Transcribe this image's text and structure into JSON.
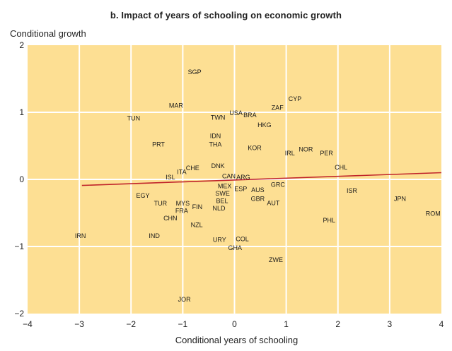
{
  "chart_data": {
    "type": "scatter",
    "title": "b. Impact of years of schooling on economic growth",
    "xlabel": "Conditional years of schooling",
    "ylabel": "Conditional growth",
    "xlim": [
      -4,
      4
    ],
    "ylim": [
      -2,
      2
    ],
    "xticks": [
      -4,
      -3,
      -2,
      -1,
      0,
      1,
      2,
      3,
      4
    ],
    "yticks": [
      -2,
      -1,
      0,
      1,
      2
    ],
    "xtick_labels": [
      "−4",
      "−3",
      "−2",
      "−1",
      "0",
      "1",
      "2",
      "3",
      "4"
    ],
    "ytick_labels": [
      "−2",
      "−1",
      "0",
      "1",
      "2"
    ],
    "grid": true,
    "colors": {
      "plot_background": "#fddf93",
      "grid": "#ffffff",
      "fit_line": "#c0242a"
    },
    "fit_line": {
      "x": [
        -2.95,
        4.0
      ],
      "y": [
        -0.09,
        0.1
      ]
    },
    "points": [
      {
        "label": "SGP",
        "x": -0.77,
        "y": 1.6
      },
      {
        "label": "CYP",
        "x": 1.17,
        "y": 1.2
      },
      {
        "label": "MAR",
        "x": -1.13,
        "y": 1.1
      },
      {
        "label": "ZAF",
        "x": 0.83,
        "y": 1.07
      },
      {
        "label": "USA",
        "x": 0.03,
        "y": 0.99
      },
      {
        "label": "BRA",
        "x": 0.3,
        "y": 0.96
      },
      {
        "label": "TUN",
        "x": -1.95,
        "y": 0.91
      },
      {
        "label": "TWN",
        "x": -0.32,
        "y": 0.92
      },
      {
        "label": "HKG",
        "x": 0.58,
        "y": 0.81
      },
      {
        "label": "IDN",
        "x": -0.37,
        "y": 0.65
      },
      {
        "label": "PRT",
        "x": -1.47,
        "y": 0.52
      },
      {
        "label": "THA",
        "x": -0.37,
        "y": 0.52
      },
      {
        "label": "KOR",
        "x": 0.39,
        "y": 0.47
      },
      {
        "label": "NOR",
        "x": 1.38,
        "y": 0.45
      },
      {
        "label": "IRL",
        "x": 1.07,
        "y": 0.39
      },
      {
        "label": "PER",
        "x": 1.78,
        "y": 0.39
      },
      {
        "label": "DNK",
        "x": -0.32,
        "y": 0.2
      },
      {
        "label": "CHL",
        "x": 2.06,
        "y": 0.18
      },
      {
        "label": "CHE",
        "x": -0.81,
        "y": 0.17
      },
      {
        "label": "ITA",
        "x": -1.02,
        "y": 0.11
      },
      {
        "label": "CAN",
        "x": -0.11,
        "y": 0.05
      },
      {
        "label": "ARG",
        "x": 0.17,
        "y": 0.03
      },
      {
        "label": "ISL",
        "x": -1.24,
        "y": 0.03
      },
      {
        "label": "MEX",
        "x": -0.19,
        "y": -0.1
      },
      {
        "label": "GRC",
        "x": 0.84,
        "y": -0.08
      },
      {
        "label": "ESP",
        "x": 0.12,
        "y": -0.14
      },
      {
        "label": "AUS",
        "x": 0.45,
        "y": -0.16
      },
      {
        "label": "ISR",
        "x": 2.27,
        "y": -0.17
      },
      {
        "label": "SWE",
        "x": -0.23,
        "y": -0.21
      },
      {
        "label": "EGY",
        "x": -1.77,
        "y": -0.24
      },
      {
        "label": "GBR",
        "x": 0.45,
        "y": -0.29
      },
      {
        "label": "JPN",
        "x": 3.2,
        "y": -0.29
      },
      {
        "label": "BEL",
        "x": -0.24,
        "y": -0.32
      },
      {
        "label": "TUR",
        "x": -1.43,
        "y": -0.36
      },
      {
        "label": "MYS",
        "x": -1.0,
        "y": -0.36
      },
      {
        "label": "AUT",
        "x": 0.75,
        "y": -0.35
      },
      {
        "label": "FIN",
        "x": -0.72,
        "y": -0.41
      },
      {
        "label": "NLD",
        "x": -0.3,
        "y": -0.43
      },
      {
        "label": "FRA",
        "x": -1.02,
        "y": -0.47
      },
      {
        "label": "ROM",
        "x": 3.84,
        "y": -0.51
      },
      {
        "label": "CHN",
        "x": -1.24,
        "y": -0.58
      },
      {
        "label": "PHL",
        "x": 1.83,
        "y": -0.61
      },
      {
        "label": "NZL",
        "x": -0.73,
        "y": -0.68
      },
      {
        "label": "IRN",
        "x": -2.98,
        "y": -0.84
      },
      {
        "label": "IND",
        "x": -1.55,
        "y": -0.84
      },
      {
        "label": "URY",
        "x": -0.29,
        "y": -0.9
      },
      {
        "label": "COL",
        "x": 0.15,
        "y": -0.89
      },
      {
        "label": "GHA",
        "x": 0.01,
        "y": -1.02
      },
      {
        "label": "ZWE",
        "x": 0.8,
        "y": -1.2
      },
      {
        "label": "JOR",
        "x": -0.97,
        "y": -1.79
      }
    ]
  }
}
